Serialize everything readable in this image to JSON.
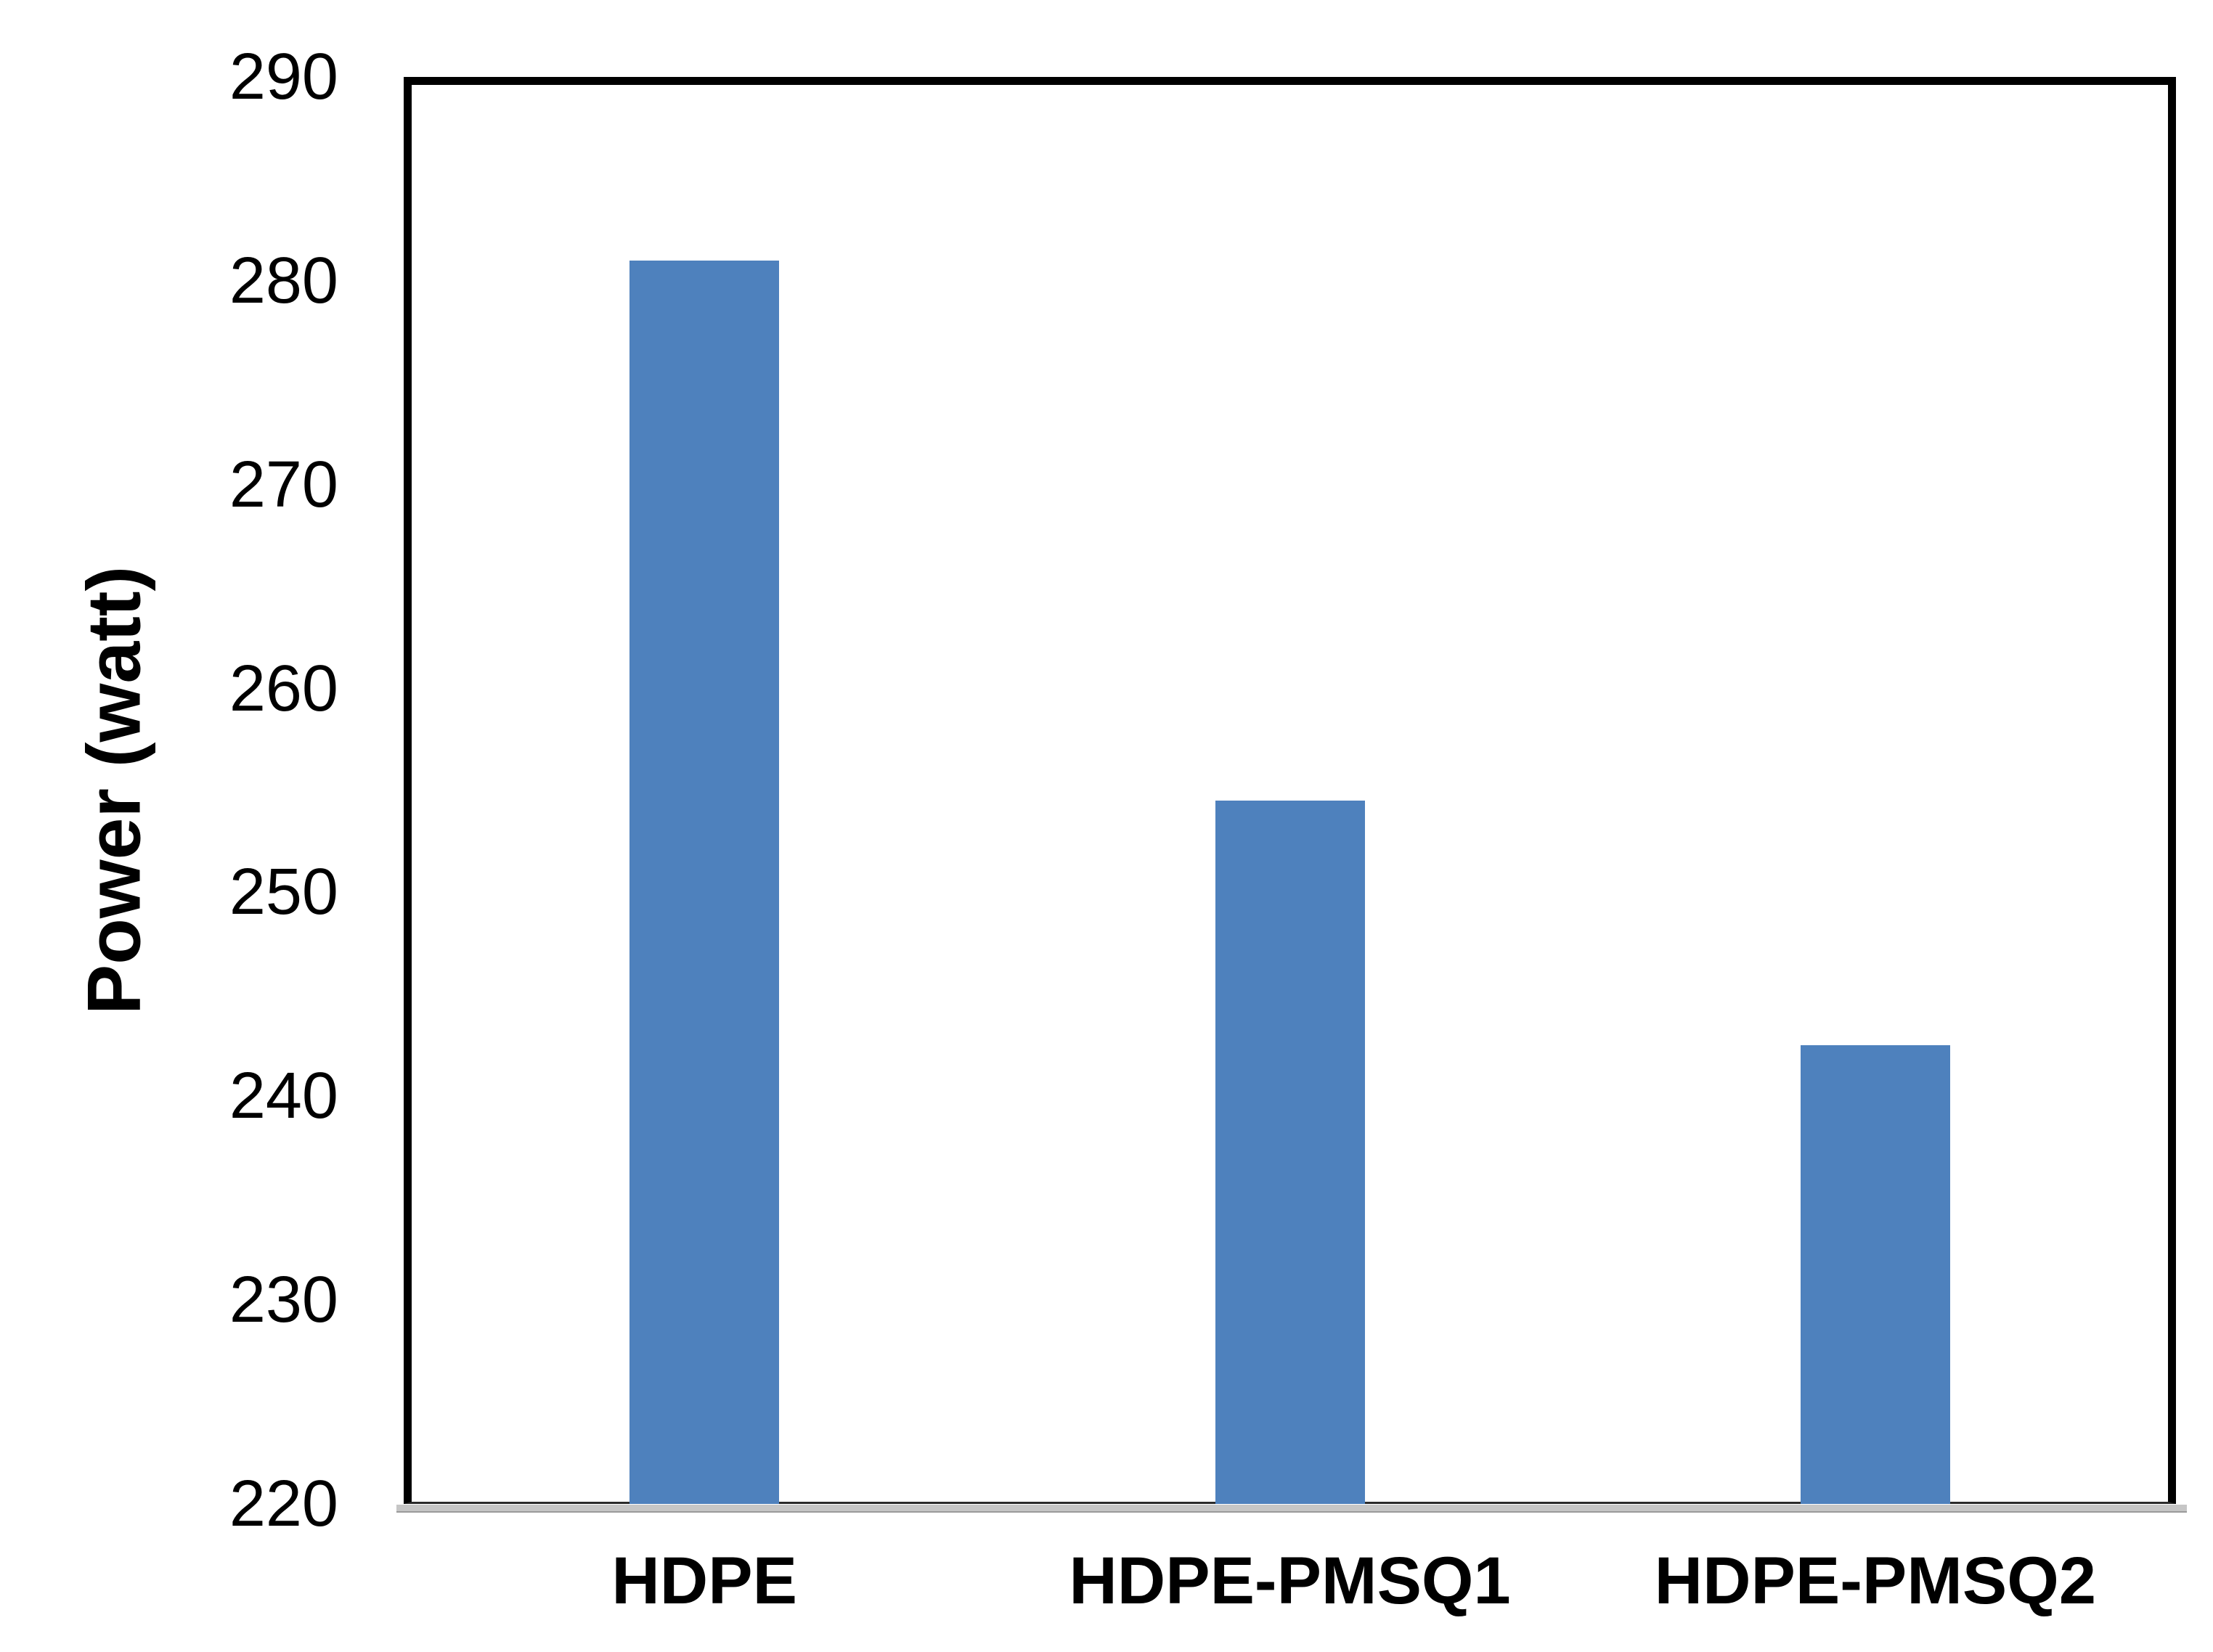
{
  "chart_data": {
    "type": "bar",
    "categories": [
      "HDPE",
      "HDPE-PMSQ1",
      "HDPE-PMSQ2"
    ],
    "values": [
      281,
      254.5,
      242.5
    ],
    "title": "",
    "xlabel": "",
    "ylabel": "Power (watt)",
    "ylim": [
      220,
      290
    ],
    "ytick_step": 10,
    "yticks": [
      290,
      280,
      270,
      260,
      250,
      240,
      230,
      220
    ],
    "bar_color": "#4E81BD",
    "grid": false,
    "legend": false,
    "legend_position": "none",
    "plot_border_color": "#000000",
    "axis_shadow_color": "#C6C6C6"
  }
}
